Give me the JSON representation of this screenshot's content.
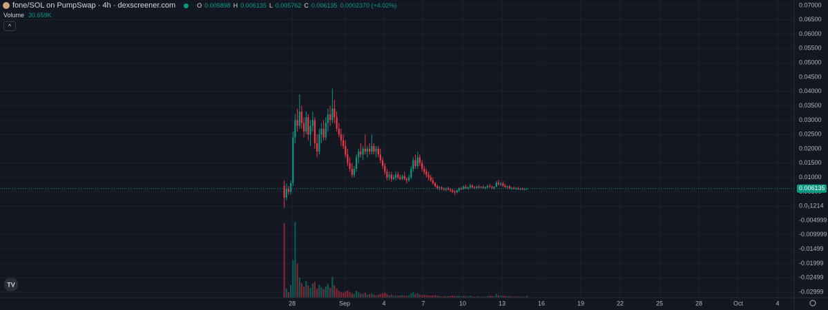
{
  "chart_data": {
    "type": "candlestick",
    "title": "fone/SOL on PumpSwap · 4h · dexscreener.com",
    "ohlc_letters": [
      "O",
      "H",
      "L",
      "C"
    ],
    "change": "0.0002370 (+4.02%)",
    "volume_title": "Volume",
    "volume_label": "30.659K",
    "up_color": "#089981",
    "down_color": "#f23645",
    "grid": true,
    "xlim": [
      5.74,
      66.26
    ],
    "xticks": [
      {
        "value": 28,
        "label": "28"
      },
      {
        "value": 32,
        "label": "Sep"
      },
      {
        "value": 35,
        "label": "4"
      },
      {
        "value": 38,
        "label": "7"
      },
      {
        "value": 41,
        "label": "10"
      },
      {
        "value": 44,
        "label": "13"
      },
      {
        "value": 47,
        "label": "16"
      },
      {
        "value": 50,
        "label": "19"
      },
      {
        "value": 53,
        "label": "22"
      },
      {
        "value": 56,
        "label": "25"
      },
      {
        "value": 59,
        "label": "28"
      },
      {
        "value": 62,
        "label": "Oct"
      },
      {
        "value": 65,
        "label": "4"
      }
    ],
    "ylim": [
      -0.0319,
      0.0719
    ],
    "yticks": [
      {
        "value": 0.07,
        "label": "0.07000"
      },
      {
        "value": 0.065,
        "label": "0.06500"
      },
      {
        "value": 0.06,
        "label": "0.06000"
      },
      {
        "value": 0.055,
        "label": "0.05500"
      },
      {
        "value": 0.05,
        "label": "0.05000"
      },
      {
        "value": 0.045,
        "label": "0.04500"
      },
      {
        "value": 0.04,
        "label": "0.04000"
      },
      {
        "value": 0.035,
        "label": "0.03500"
      },
      {
        "value": 0.03,
        "label": "0.03000"
      },
      {
        "value": 0.025,
        "label": "0.02500"
      },
      {
        "value": 0.02,
        "label": "0.02000"
      },
      {
        "value": 0.015,
        "label": "0.01500"
      },
      {
        "value": 0.01,
        "label": "0.01000"
      },
      {
        "value": 0.005,
        "label": "0.00500"
      },
      {
        "value": 0,
        "label": "0.0₁1214"
      },
      -0.004999,
      -0.009999,
      -0.01499,
      -0.01999,
      -0.02499,
      -0.02999
    ],
    "volume_ylim": [
      0,
      1500000
    ],
    "x": [
      27.4,
      27.57,
      27.73,
      27.9,
      28.07,
      28.23,
      28.4,
      28.57,
      28.73,
      28.9,
      29.07,
      29.23,
      29.4,
      29.57,
      29.73,
      29.9,
      30.07,
      30.23,
      30.4,
      30.57,
      30.73,
      30.9,
      31.07,
      31.23,
      31.4,
      31.57,
      31.73,
      31.9,
      32.07,
      32.23,
      32.4,
      32.57,
      32.73,
      32.9,
      33.07,
      33.23,
      33.4,
      33.57,
      33.73,
      33.9,
      34.07,
      34.23,
      34.4,
      34.57,
      34.73,
      34.9,
      35.07,
      35.23,
      35.4,
      35.57,
      35.73,
      35.9,
      36.07,
      36.23,
      36.4,
      36.57,
      36.73,
      36.9,
      37.07,
      37.23,
      37.4,
      37.57,
      37.73,
      37.9,
      38.07,
      38.23,
      38.4,
      38.57,
      38.73,
      38.9,
      39.07,
      39.23,
      39.4,
      39.57,
      39.73,
      39.9,
      40.07,
      40.23,
      40.4,
      40.57,
      40.73,
      40.9,
      41.07,
      41.23,
      41.4,
      41.57,
      41.73,
      41.9,
      42.07,
      42.23,
      42.4,
      42.57,
      42.73,
      42.9,
      43.07,
      43.23,
      43.4,
      43.57,
      43.73,
      43.9,
      44.07,
      44.23,
      44.4,
      44.57,
      44.73,
      44.9,
      45.07,
      45.23,
      45.4,
      45.57,
      45.73,
      45.9
    ],
    "open": [
      0.007,
      0.003,
      0.006,
      0.005,
      0.008,
      0.024,
      0.03,
      0.028,
      0.033,
      0.029,
      0.026,
      0.031,
      0.025,
      0.028,
      0.03,
      0.022,
      0.019,
      0.025,
      0.027,
      0.024,
      0.029,
      0.032,
      0.03,
      0.034,
      0.031,
      0.027,
      0.025,
      0.023,
      0.021,
      0.018,
      0.015,
      0.013,
      0.011,
      0.013,
      0.017,
      0.019,
      0.018,
      0.02,
      0.019,
      0.02,
      0.019,
      0.021,
      0.019,
      0.02,
      0.018,
      0.016,
      0.014,
      0.012,
      0.01,
      0.011,
      0.0095,
      0.01,
      0.011,
      0.01,
      0.0095,
      0.0105,
      0.0095,
      0.009,
      0.01,
      0.013,
      0.016,
      0.014,
      0.017,
      0.015,
      0.013,
      0.012,
      0.011,
      0.01,
      0.009,
      0.008,
      0.007,
      0.0062,
      0.0065,
      0.006,
      0.0058,
      0.0062,
      0.0057,
      0.0055,
      0.005,
      0.0048,
      0.0055,
      0.0062,
      0.006,
      0.0068,
      0.0063,
      0.0065,
      0.0072,
      0.0066,
      0.0064,
      0.0068,
      0.0065,
      0.0067,
      0.0063,
      0.0066,
      0.007,
      0.0067,
      0.0064,
      0.0068,
      0.0082,
      0.0076,
      0.0079,
      0.0071,
      0.0066,
      0.0069,
      0.0062,
      0.0064,
      0.006,
      0.0063,
      0.0059,
      0.0061,
      0.0058,
      0.005898
    ],
    "high": [
      0.009,
      0.008,
      0.007,
      0.009,
      0.026,
      0.032,
      0.034,
      0.039,
      0.035,
      0.031,
      0.033,
      0.032,
      0.03,
      0.033,
      0.031,
      0.025,
      0.027,
      0.029,
      0.03,
      0.031,
      0.034,
      0.035,
      0.041,
      0.037,
      0.033,
      0.029,
      0.027,
      0.025,
      0.023,
      0.02,
      0.017,
      0.015,
      0.014,
      0.018,
      0.02,
      0.022,
      0.021,
      0.025,
      0.021,
      0.022,
      0.025,
      0.022,
      0.021,
      0.021,
      0.02,
      0.017,
      0.015,
      0.013,
      0.012,
      0.012,
      0.011,
      0.012,
      0.012,
      0.011,
      0.011,
      0.012,
      0.01,
      0.011,
      0.014,
      0.017,
      0.018,
      0.019,
      0.018,
      0.016,
      0.014,
      0.013,
      0.012,
      0.011,
      0.01,
      0.0085,
      0.0075,
      0.007,
      0.007,
      0.0066,
      0.0065,
      0.0068,
      0.0063,
      0.006,
      0.0057,
      0.0058,
      0.0065,
      0.0068,
      0.0072,
      0.0075,
      0.0069,
      0.0078,
      0.0076,
      0.007,
      0.0071,
      0.0074,
      0.007,
      0.0073,
      0.0069,
      0.0075,
      0.0078,
      0.0072,
      0.0069,
      0.0088,
      0.0092,
      0.0085,
      0.0086,
      0.0078,
      0.0072,
      0.0073,
      0.0067,
      0.0068,
      0.0066,
      0.0067,
      0.0064,
      0.0065,
      0.0063,
      0.006135
    ],
    "low": [
      -0.0005,
      0.002,
      0.004,
      0.004,
      0.007,
      0.022,
      0.026,
      0.027,
      0.027,
      0.024,
      0.025,
      0.023,
      0.021,
      0.026,
      0.02,
      0.017,
      0.018,
      0.022,
      0.023,
      0.023,
      0.026,
      0.028,
      0.029,
      0.029,
      0.026,
      0.024,
      0.021,
      0.02,
      0.017,
      0.014,
      0.012,
      0.01,
      0.01,
      0.012,
      0.015,
      0.017,
      0.016,
      0.018,
      0.017,
      0.018,
      0.018,
      0.018,
      0.017,
      0.017,
      0.015,
      0.013,
      0.011,
      0.009,
      0.009,
      0.0085,
      0.009,
      0.009,
      0.0095,
      0.009,
      0.009,
      0.009,
      0.008,
      0.0085,
      0.0095,
      0.012,
      0.013,
      0.013,
      0.014,
      0.012,
      0.011,
      0.01,
      0.009,
      0.0085,
      0.0075,
      0.0065,
      0.0058,
      0.0055,
      0.0056,
      0.0054,
      0.0052,
      0.0055,
      0.005,
      0.0045,
      0.004,
      0.0045,
      0.005,
      0.0056,
      0.0057,
      0.006,
      0.0058,
      0.006,
      0.0062,
      0.006,
      0.0059,
      0.0062,
      0.006,
      0.0061,
      0.0058,
      0.0062,
      0.0064,
      0.006,
      0.0058,
      0.0066,
      0.0072,
      0.007,
      0.0068,
      0.0064,
      0.0061,
      0.006,
      0.0057,
      0.0058,
      0.0056,
      0.0057,
      0.0055,
      0.0056,
      0.0055,
      0.005762
    ],
    "close": [
      0.003,
      0.006,
      0.005,
      0.008,
      0.024,
      0.03,
      0.028,
      0.033,
      0.029,
      0.026,
      0.031,
      0.025,
      0.028,
      0.03,
      0.022,
      0.019,
      0.025,
      0.027,
      0.024,
      0.029,
      0.032,
      0.03,
      0.034,
      0.031,
      0.027,
      0.025,
      0.023,
      0.021,
      0.018,
      0.015,
      0.013,
      0.011,
      0.013,
      0.017,
      0.019,
      0.018,
      0.02,
      0.019,
      0.02,
      0.019,
      0.021,
      0.019,
      0.02,
      0.018,
      0.016,
      0.014,
      0.012,
      0.01,
      0.011,
      0.0095,
      0.01,
      0.011,
      0.01,
      0.0095,
      0.0105,
      0.0095,
      0.009,
      0.01,
      0.013,
      0.016,
      0.014,
      0.017,
      0.015,
      0.013,
      0.012,
      0.011,
      0.01,
      0.009,
      0.008,
      0.007,
      0.0062,
      0.0065,
      0.006,
      0.0058,
      0.0062,
      0.0057,
      0.0055,
      0.005,
      0.0048,
      0.0055,
      0.0062,
      0.006,
      0.0068,
      0.0063,
      0.0065,
      0.0072,
      0.0066,
      0.0064,
      0.0068,
      0.0065,
      0.0067,
      0.0063,
      0.0066,
      0.007,
      0.0067,
      0.0064,
      0.0068,
      0.0082,
      0.0076,
      0.0079,
      0.0071,
      0.0066,
      0.0069,
      0.0062,
      0.0064,
      0.006,
      0.0063,
      0.0059,
      0.0061,
      0.0058,
      0.0059,
      0.006135
    ],
    "volume": [
      1230000,
      150000,
      90000,
      210000,
      620000,
      1250000,
      560000,
      330000,
      240000,
      180000,
      270000,
      200000,
      160000,
      230000,
      260000,
      150000,
      210000,
      170000,
      140000,
      190000,
      230000,
      160000,
      340000,
      200000,
      150000,
      110000,
      90000,
      80000,
      100000,
      120000,
      90000,
      70000,
      60000,
      110000,
      90000,
      70000,
      60000,
      80000,
      50000,
      60000,
      70000,
      50000,
      40000,
      50000,
      60000,
      70000,
      80000,
      60000,
      40000,
      50000,
      30000,
      40000,
      30000,
      35000,
      40000,
      30000,
      30000,
      40000,
      70000,
      90000,
      60000,
      70000,
      50000,
      40000,
      45000,
      40000,
      35000,
      30000,
      35000,
      40000,
      30000,
      25000,
      20000,
      25000,
      20000,
      25000,
      30000,
      35000,
      30000,
      25000,
      30000,
      20000,
      30000,
      25000,
      20000,
      30000,
      20000,
      15000,
      20000,
      20000,
      15000,
      20000,
      15000,
      25000,
      30000,
      25000,
      20000,
      60000,
      40000,
      30000,
      30000,
      25000,
      20000,
      25000,
      20000,
      15000,
      20000,
      20000,
      15000,
      20000,
      15000,
      30659
    ]
  }
}
